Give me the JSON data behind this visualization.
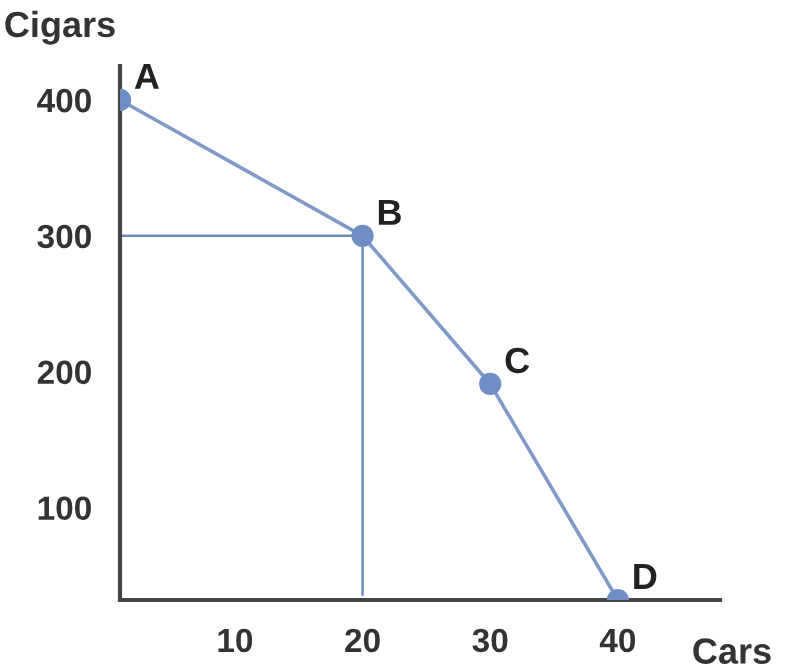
{
  "chart_data": {
    "type": "line",
    "xlabel": "Cars",
    "ylabel": "Cigars",
    "xlim": [
      1,
      48
    ],
    "ylim": [
      32,
      425
    ],
    "xticks": [
      10,
      20,
      30,
      40
    ],
    "yticks": [
      100,
      200,
      300,
      400
    ],
    "grid": false,
    "legend": false,
    "series": [
      {
        "color": "#7f9ac8",
        "marker": "circle",
        "x": [
          1,
          20,
          30,
          40
        ],
        "values": [
          400,
          300,
          191,
          32
        ]
      },
      {
        "color": "#6a8cc0",
        "marker": "none",
        "x": [
          1,
          20
        ],
        "values": [
          300,
          300
        ]
      },
      {
        "color": "#6a8cc0",
        "marker": "none",
        "x": [
          20,
          20
        ],
        "values": [
          36,
          300
        ]
      }
    ],
    "annotations": [
      {
        "text": "A",
        "x": 1,
        "y": 400
      },
      {
        "text": "B",
        "x": 20,
        "y": 300
      },
      {
        "text": "C",
        "x": 30,
        "y": 191
      },
      {
        "text": "D",
        "x": 40,
        "y": 32
      }
    ]
  }
}
